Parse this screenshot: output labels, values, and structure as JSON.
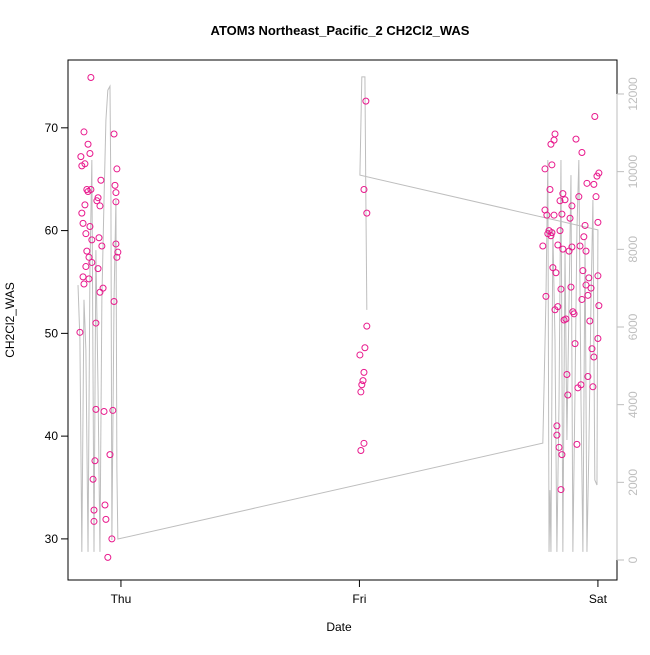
{
  "chart_data": {
    "type": "scatter",
    "title": "ATOM3 Northeast_Pacific_2 CH2Cl2_WAS",
    "xlabel": "Date",
    "ylabel": "CH2Cl2_WAS",
    "xlim": [
      -0.222,
      2.08
    ],
    "xticks": [
      {
        "value": 0,
        "label": "Thu"
      },
      {
        "value": 1,
        "label": "Fri"
      },
      {
        "value": 2,
        "label": "Sat"
      }
    ],
    "ylim": [
      26.0,
      76.6
    ],
    "yticks": [
      30,
      40,
      50,
      60,
      70
    ],
    "y2lim": [
      -515,
      12875
    ],
    "y2ticks": [
      0,
      2000,
      4000,
      6000,
      8000,
      10000,
      12000
    ],
    "y2color": "#bebebe",
    "series": [
      {
        "type": "scatter",
        "color": "#e8188c",
        "x": [
          -0.172,
          -0.168,
          -0.164,
          -0.164,
          -0.159,
          -0.159,
          -0.155,
          -0.155,
          -0.151,
          -0.151,
          -0.147,
          -0.147,
          -0.143,
          -0.143,
          -0.138,
          -0.138,
          -0.134,
          -0.134,
          -0.13,
          -0.13,
          -0.126,
          -0.126,
          -0.122,
          -0.122,
          -0.117,
          -0.113,
          -0.113,
          -0.109,
          -0.105,
          -0.105,
          -0.101,
          -0.096,
          -0.096,
          -0.092,
          -0.088,
          -0.088,
          -0.084,
          -0.08,
          -0.075,
          -0.071,
          -0.067,
          -0.063,
          -0.055,
          -0.046,
          -0.038,
          -0.034,
          -0.029,
          -0.029,
          -0.025,
          -0.021,
          -0.021,
          -0.021,
          -0.017,
          -0.013,
          -0.017,
          1.002,
          1.006,
          1.006,
          1.01,
          1.015,
          1.019,
          1.019,
          1.019,
          1.023,
          1.027,
          1.031,
          1.031,
          1.769,
          1.778,
          1.782,
          1.778,
          1.786,
          1.79,
          1.795,
          1.799,
          1.803,
          1.803,
          1.807,
          1.807,
          1.811,
          1.816,
          1.816,
          1.82,
          1.82,
          1.824,
          1.828,
          1.828,
          1.832,
          1.832,
          1.837,
          1.841,
          1.841,
          1.845,
          1.845,
          1.849,
          1.849,
          1.853,
          1.853,
          1.858,
          1.862,
          1.866,
          1.87,
          1.874,
          1.879,
          1.883,
          1.887,
          1.891,
          1.891,
          1.895,
          1.9,
          1.904,
          1.908,
          1.912,
          1.916,
          1.92,
          1.925,
          1.929,
          1.933,
          1.933,
          1.937,
          1.941,
          1.946,
          1.95,
          1.95,
          1.954,
          1.958,
          1.958,
          1.962,
          1.966,
          1.971,
          1.975,
          1.979,
          1.983,
          1.983,
          1.987,
          1.992,
          1.996,
          2.0,
          2.0,
          2.004,
          2.004,
          2.0
        ],
        "values": [
          50.1,
          67.2,
          66.3,
          61.7,
          55.5,
          60.7,
          69.6,
          54.8,
          62.5,
          66.5,
          59.7,
          56.5,
          64,
          58,
          68.4,
          63.8,
          55.3,
          57.4,
          67.5,
          60.4,
          74.9,
          64,
          56.9,
          59.1,
          35.8,
          31.7,
          32.8,
          37.6,
          42.6,
          51,
          62.9,
          63.2,
          56.3,
          59.3,
          54,
          62.4,
          64.9,
          58.5,
          54.4,
          42.4,
          33.3,
          31.9,
          28.2,
          38.2,
          30,
          42.5,
          53.1,
          69.4,
          64.4,
          58.7,
          63.7,
          62.8,
          66,
          57.9,
          57.4,
          47.9,
          44.3,
          38.6,
          45,
          45.4,
          39.3,
          46.2,
          64,
          48.6,
          72.6,
          61.7,
          50.7,
          58.5,
          66,
          53.6,
          62,
          61.5,
          59.7,
          60,
          64,
          68.4,
          59.5,
          66.4,
          59.8,
          56.4,
          61.5,
          68.8,
          52.3,
          69.4,
          55.9,
          41,
          40.1,
          58.6,
          52.6,
          38.9,
          62.9,
          60,
          54.3,
          34.8,
          38.2,
          61.6,
          58.2,
          63.6,
          51.3,
          63,
          51.4,
          46,
          44,
          58,
          61.2,
          54.5,
          58.4,
          62.4,
          52.1,
          51.9,
          49,
          68.9,
          39.2,
          44.7,
          63.3,
          58.5,
          45,
          53.3,
          67.6,
          56.1,
          59.4,
          60.5,
          54.7,
          58,
          64.6,
          45.8,
          53.7,
          55.4,
          51.2,
          54.4,
          48.5,
          44.8,
          47.7,
          64.5,
          71.1,
          63.3,
          65.3,
          60.8,
          55.6,
          52.7,
          65.6,
          49.5
        ]
      },
      {
        "type": "line",
        "color": "#bebebe",
        "axis": "y2",
        "x": [
          -0.18,
          -0.172,
          -0.164,
          -0.155,
          -0.147,
          -0.138,
          -0.13,
          -0.122,
          -0.113,
          -0.105,
          -0.096,
          -0.088,
          -0.08,
          -0.071,
          -0.063,
          -0.055,
          -0.046,
          -0.042,
          -0.038,
          -0.029,
          -0.021,
          -0.017,
          -0.013,
          1.769,
          1.782,
          1.79,
          1.795,
          1.799,
          1.803,
          1.811,
          1.82,
          1.828,
          1.837,
          1.845,
          1.853,
          1.862,
          1.87,
          1.879,
          1.887,
          1.895,
          1.904,
          1.912,
          1.92,
          1.929,
          1.937,
          1.946,
          1.954,
          1.962,
          1.971,
          1.979,
          1.987,
          1.996,
          2.0,
          1.002,
          1.01,
          1.023,
          1.027,
          1.031
        ],
        "values": [
          7080,
          5670,
          210,
          6700,
          5410,
          210,
          7470,
          10300,
          210,
          7980,
          4380,
          210,
          6700,
          9270,
          11330,
          12100,
          12200,
          9270,
          515,
          6700,
          9270,
          2320,
          540,
          3010,
          6700,
          10300,
          210,
          1800,
          210,
          8500,
          5670,
          210,
          4120,
          10300,
          210,
          7980,
          3090,
          6700,
          9910,
          210,
          4380,
          8500,
          10300,
          4120,
          210,
          8240,
          210,
          2830,
          6700,
          9270,
          2060,
          1930,
          8500,
          9910,
          12440,
          12440,
          9270,
          6440
        ]
      }
    ]
  }
}
